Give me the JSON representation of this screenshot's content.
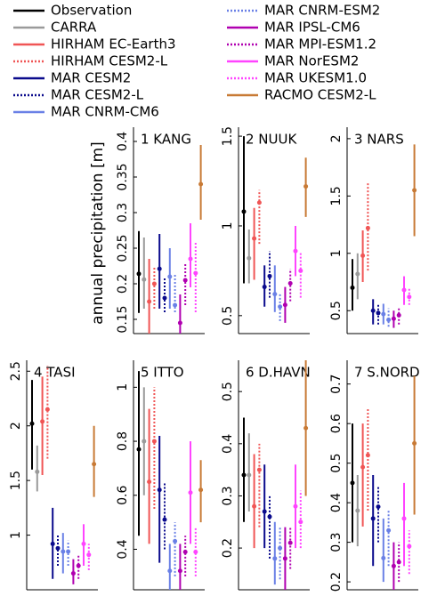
{
  "chart_data": {
    "type": "errorbar",
    "ylabel": "annual precipitation [m]",
    "series": [
      {
        "name": "Observation",
        "color": "#000000",
        "dotted": false
      },
      {
        "name": "CARRA",
        "color": "#9a9a9a",
        "dotted": false
      },
      {
        "name": "HIRHAM EC-Earth3",
        "color": "#f05555",
        "dotted": false
      },
      {
        "name": "HIRHAM CESM2-L",
        "color": "#f05555",
        "dotted": true
      },
      {
        "name": "MAR CESM2",
        "color": "#0a0a8c",
        "dotted": false
      },
      {
        "name": "MAR CESM2-L",
        "color": "#0a0a8c",
        "dotted": true
      },
      {
        "name": "MAR CNRM-CM6",
        "color": "#6a80e6",
        "dotted": false
      },
      {
        "name": "MAR CNRM-ESM2",
        "color": "#6a80e6",
        "dotted": true
      },
      {
        "name": "MAR IPSL-CM6",
        "color": "#b000b0",
        "dotted": false
      },
      {
        "name": "MAR MPI-ESM1.2",
        "color": "#b000b0",
        "dotted": true
      },
      {
        "name": "MAR NorESM2",
        "color": "#ff44ff",
        "dotted": false
      },
      {
        "name": "MAR UKESM1.0",
        "color": "#ff44ff",
        "dotted": true
      },
      {
        "name": "RACMO CESM2-L",
        "color": "#c87a35",
        "dotted": false
      }
    ],
    "panels": [
      {
        "title": "1 KANG",
        "ylim": [
          0.13,
          0.42
        ],
        "yticks": [
          0.15,
          0.2,
          0.25,
          0.3,
          0.35,
          0.4
        ],
        "values": [
          0.214,
          0.206,
          0.175,
          0.2,
          0.221,
          0.18,
          0.21,
          0.17,
          0.145,
          0.205,
          0.235,
          0.215,
          0.34
        ],
        "lows": [
          0.159,
          0.165,
          0.13,
          0.165,
          0.165,
          0.16,
          0.165,
          0.16,
          0.13,
          0.17,
          0.195,
          0.16,
          0.29
        ],
        "highs": [
          0.274,
          0.265,
          0.235,
          0.225,
          0.27,
          0.21,
          0.25,
          0.215,
          0.185,
          0.23,
          0.285,
          0.26,
          0.395
        ]
      },
      {
        "title": "2 NUUK",
        "ylim": [
          0.4,
          1.55
        ],
        "yticks": [
          0.5,
          1,
          1.5
        ],
        "values": [
          1.08,
          0.82,
          0.93,
          1.13,
          0.66,
          0.72,
          0.62,
          0.55,
          0.56,
          0.68,
          0.86,
          0.75,
          1.22
        ],
        "lows": [
          0.68,
          0.68,
          0.7,
          0.9,
          0.55,
          0.6,
          0.52,
          0.47,
          0.46,
          0.58,
          0.72,
          0.6,
          1.05
        ],
        "highs": [
          1.5,
          0.98,
          1.1,
          1.2,
          0.78,
          0.86,
          0.78,
          0.62,
          0.66,
          0.76,
          1.0,
          0.85,
          1.38
        ]
      },
      {
        "title": "3 NARS",
        "ylim": [
          0.3,
          2.1
        ],
        "yticks": [
          0.5,
          1,
          1.5,
          2
        ],
        "values": [
          0.7,
          0.82,
          0.98,
          1.22,
          0.5,
          0.48,
          0.47,
          0.42,
          0.43,
          0.46,
          0.68,
          0.62,
          1.55
        ],
        "lows": [
          0.5,
          0.6,
          0.75,
          0.85,
          0.38,
          0.38,
          0.38,
          0.36,
          0.35,
          0.38,
          0.55,
          0.55,
          1.15
        ],
        "highs": [
          0.95,
          1.0,
          1.2,
          1.62,
          0.6,
          0.55,
          0.56,
          0.52,
          0.5,
          0.52,
          0.8,
          0.7,
          1.95
        ]
      },
      {
        "title": "4 TASI",
        "ylim": [
          0.5,
          2.6
        ],
        "yticks": [
          1,
          1.5,
          2,
          2.5
        ],
        "values": [
          2.02,
          1.58,
          2.04,
          2.15,
          0.92,
          0.88,
          0.85,
          0.85,
          0.65,
          0.72,
          0.92,
          0.82,
          1.65
        ],
        "lows": [
          1.6,
          1.4,
          1.55,
          1.7,
          0.6,
          0.72,
          0.65,
          0.72,
          0.55,
          0.6,
          0.72,
          0.68,
          1.35
        ],
        "highs": [
          2.42,
          1.82,
          2.45,
          2.55,
          1.25,
          1.0,
          1.02,
          0.95,
          0.78,
          0.82,
          1.1,
          0.92,
          2.0
        ]
      },
      {
        "title": "5 ITTO",
        "ylim": [
          0.25,
          1.1
        ],
        "yticks": [
          0.4,
          0.6,
          0.8,
          1
        ],
        "values": [
          0.77,
          0.8,
          0.65,
          0.8,
          0.62,
          0.51,
          0.32,
          0.43,
          0.32,
          0.39,
          0.61,
          0.39,
          0.62
        ],
        "lows": [
          0.45,
          0.6,
          0.42,
          0.55,
          0.35,
          0.4,
          0.25,
          0.3,
          0.25,
          0.3,
          0.42,
          0.3,
          0.5
        ],
        "highs": [
          1.06,
          1.0,
          0.92,
          1.0,
          0.82,
          0.65,
          0.42,
          0.5,
          0.42,
          0.45,
          0.8,
          0.48,
          0.73
        ]
      },
      {
        "title": "6 D.HAVN",
        "ylim": [
          0.12,
          0.56
        ],
        "yticks": [
          0.2,
          0.3,
          0.4,
          0.5
        ],
        "values": [
          0.34,
          0.34,
          0.28,
          0.35,
          0.27,
          0.26,
          0.18,
          0.2,
          0.18,
          0.21,
          0.28,
          0.25,
          0.43
        ],
        "lows": [
          0.25,
          0.27,
          0.2,
          0.24,
          0.2,
          0.18,
          0.13,
          0.14,
          0.12,
          0.16,
          0.2,
          0.2,
          0.3
        ],
        "highs": [
          0.45,
          0.42,
          0.38,
          0.4,
          0.36,
          0.3,
          0.25,
          0.24,
          0.24,
          0.24,
          0.36,
          0.31,
          0.56
        ]
      },
      {
        "title": "7 S.NORD",
        "ylim": [
          0.18,
          0.76
        ],
        "yticks": [
          0.2,
          0.3,
          0.4,
          0.5,
          0.6,
          0.7
        ],
        "values": [
          0.45,
          0.38,
          0.49,
          0.52,
          0.36,
          0.39,
          0.26,
          0.33,
          0.24,
          0.25,
          0.36,
          0.29,
          0.55
        ],
        "lows": [
          0.3,
          0.29,
          0.34,
          0.38,
          0.24,
          0.3,
          0.2,
          0.24,
          0.18,
          0.2,
          0.24,
          0.22,
          0.37
        ],
        "highs": [
          0.6,
          0.47,
          0.6,
          0.64,
          0.47,
          0.44,
          0.36,
          0.38,
          0.3,
          0.3,
          0.45,
          0.33,
          0.72
        ]
      }
    ]
  }
}
